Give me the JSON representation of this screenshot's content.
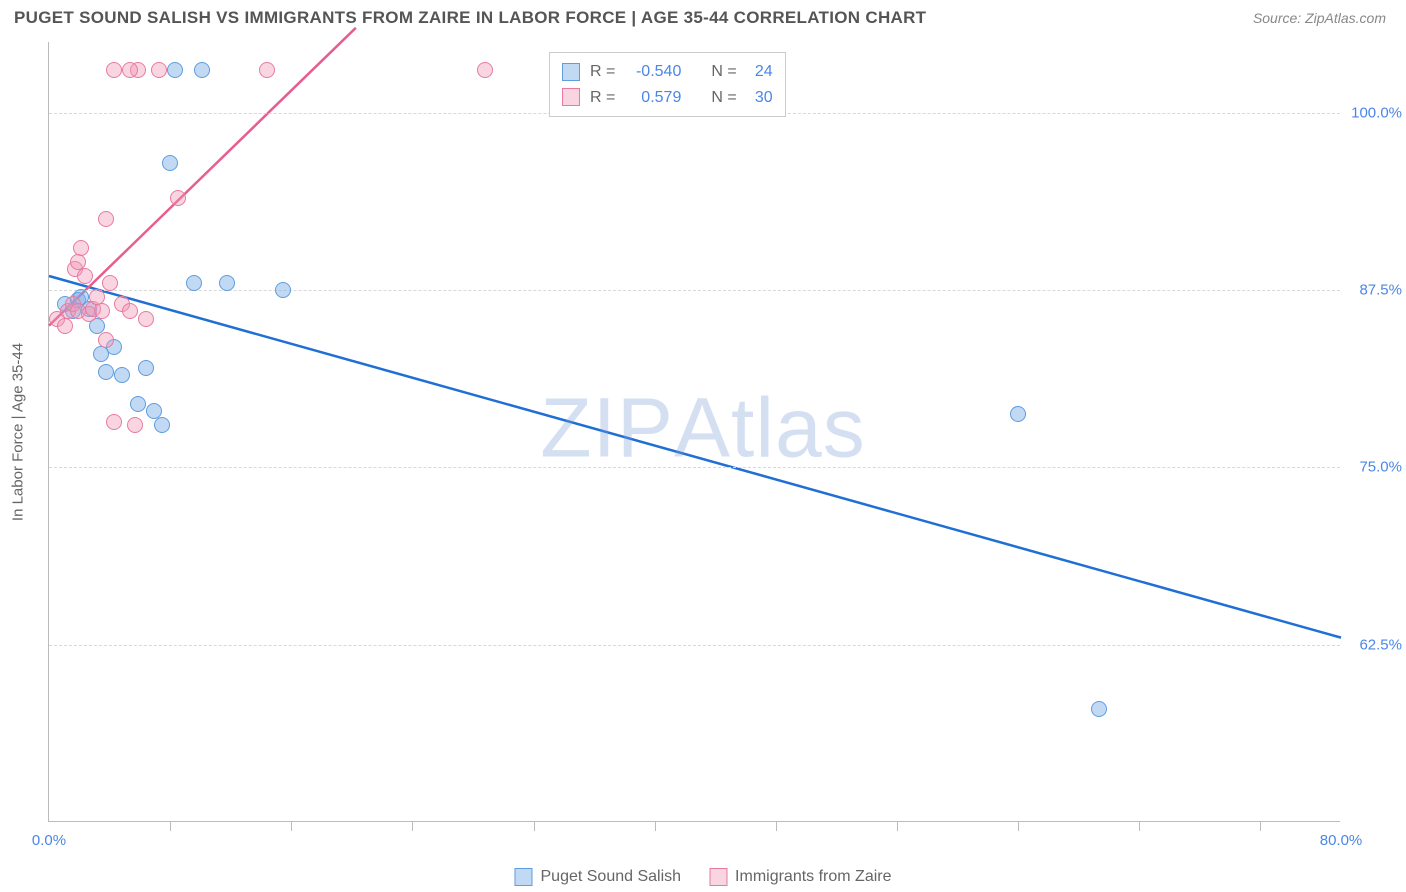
{
  "header": {
    "title": "PUGET SOUND SALISH VS IMMIGRANTS FROM ZAIRE IN LABOR FORCE | AGE 35-44 CORRELATION CHART",
    "source_label": "Source:",
    "source_name": "ZipAtlas.com"
  },
  "chart": {
    "type": "scatter",
    "y_axis_label": "In Labor Force | Age 35-44",
    "background_color": "#ffffff",
    "grid_color": "#d8d8d8",
    "axis_color": "#bbbbbb",
    "xlim": [
      0,
      80
    ],
    "ylim": [
      50,
      105
    ],
    "x_ticks": [
      0,
      80
    ],
    "x_tick_labels": [
      "0.0%",
      "80.0%"
    ],
    "x_minor_ticks": [
      7.5,
      15,
      22.5,
      30,
      37.5,
      45,
      52.5,
      60,
      67.5,
      75
    ],
    "y_ticks": [
      62.5,
      75.0,
      87.5,
      100.0
    ],
    "y_tick_labels": [
      "62.5%",
      "75.0%",
      "87.5%",
      "100.0%"
    ],
    "watermark": "ZIPAtlas",
    "series": [
      {
        "name": "Puget Sound Salish",
        "color_fill": "rgba(120,170,230,0.45)",
        "color_stroke": "#5d9de0",
        "marker_size": 16,
        "trend_color": "#1f6fd4",
        "trend_width": 2.5,
        "trend_start": [
          0,
          88.5
        ],
        "trend_end": [
          80,
          63.0
        ],
        "points": [
          [
            1.0,
            86.5
          ],
          [
            1.5,
            86.0
          ],
          [
            1.8,
            86.8
          ],
          [
            2.0,
            87.0
          ],
          [
            2.5,
            86.2
          ],
          [
            3.0,
            85.0
          ],
          [
            3.2,
            83.0
          ],
          [
            3.5,
            81.7
          ],
          [
            4.0,
            83.5
          ],
          [
            4.5,
            81.5
          ],
          [
            5.5,
            79.5
          ],
          [
            6.0,
            82.0
          ],
          [
            6.5,
            79.0
          ],
          [
            7.0,
            78.0
          ],
          [
            7.8,
            103.0
          ],
          [
            7.5,
            96.5
          ],
          [
            9.0,
            88.0
          ],
          [
            9.5,
            103.0
          ],
          [
            11.0,
            88.0
          ],
          [
            14.5,
            87.5
          ],
          [
            60.0,
            78.8
          ],
          [
            65.0,
            58.0
          ]
        ]
      },
      {
        "name": "Immigrants from Zaire",
        "color_fill": "rgba(240,150,180,0.40)",
        "color_stroke": "#e87aa2",
        "marker_size": 16,
        "trend_color": "#e75d90",
        "trend_width": 2.5,
        "trend_start": [
          0,
          85.0
        ],
        "trend_end": [
          19,
          106.0
        ],
        "points": [
          [
            0.5,
            85.5
          ],
          [
            1.0,
            85.0
          ],
          [
            1.2,
            86.0
          ],
          [
            1.5,
            86.5
          ],
          [
            1.8,
            86.0
          ],
          [
            1.6,
            89.0
          ],
          [
            1.8,
            89.5
          ],
          [
            2.0,
            90.5
          ],
          [
            2.2,
            88.5
          ],
          [
            2.5,
            85.8
          ],
          [
            2.7,
            86.2
          ],
          [
            3.0,
            87.0
          ],
          [
            3.3,
            86.0
          ],
          [
            3.5,
            84.0
          ],
          [
            3.8,
            88.0
          ],
          [
            3.5,
            92.5
          ],
          [
            4.0,
            78.2
          ],
          [
            4.0,
            103.0
          ],
          [
            4.5,
            86.5
          ],
          [
            5.0,
            86.0
          ],
          [
            5.3,
            78.0
          ],
          [
            5.5,
            103.0
          ],
          [
            6.0,
            85.5
          ],
          [
            6.8,
            103.0
          ],
          [
            8.0,
            94.0
          ],
          [
            5.0,
            103.0
          ],
          [
            13.5,
            103.0
          ],
          [
            27.0,
            103.0
          ]
        ]
      }
    ],
    "legend_top": {
      "rows": [
        {
          "swatch_fill": "rgba(120,170,230,0.45)",
          "swatch_border": "#5d9de0",
          "r_label": "R =",
          "r_value": "-0.540",
          "n_label": "N =",
          "n_value": "24"
        },
        {
          "swatch_fill": "rgba(240,150,180,0.40)",
          "swatch_border": "#e87aa2",
          "r_label": "R =",
          "r_value": "0.579",
          "n_label": "N =",
          "n_value": "30"
        }
      ]
    },
    "legend_bottom": {
      "items": [
        {
          "swatch_fill": "rgba(120,170,230,0.45)",
          "swatch_border": "#5d9de0",
          "label": "Puget Sound Salish"
        },
        {
          "swatch_fill": "rgba(240,150,180,0.40)",
          "swatch_border": "#e87aa2",
          "label": "Immigrants from Zaire"
        }
      ]
    }
  }
}
